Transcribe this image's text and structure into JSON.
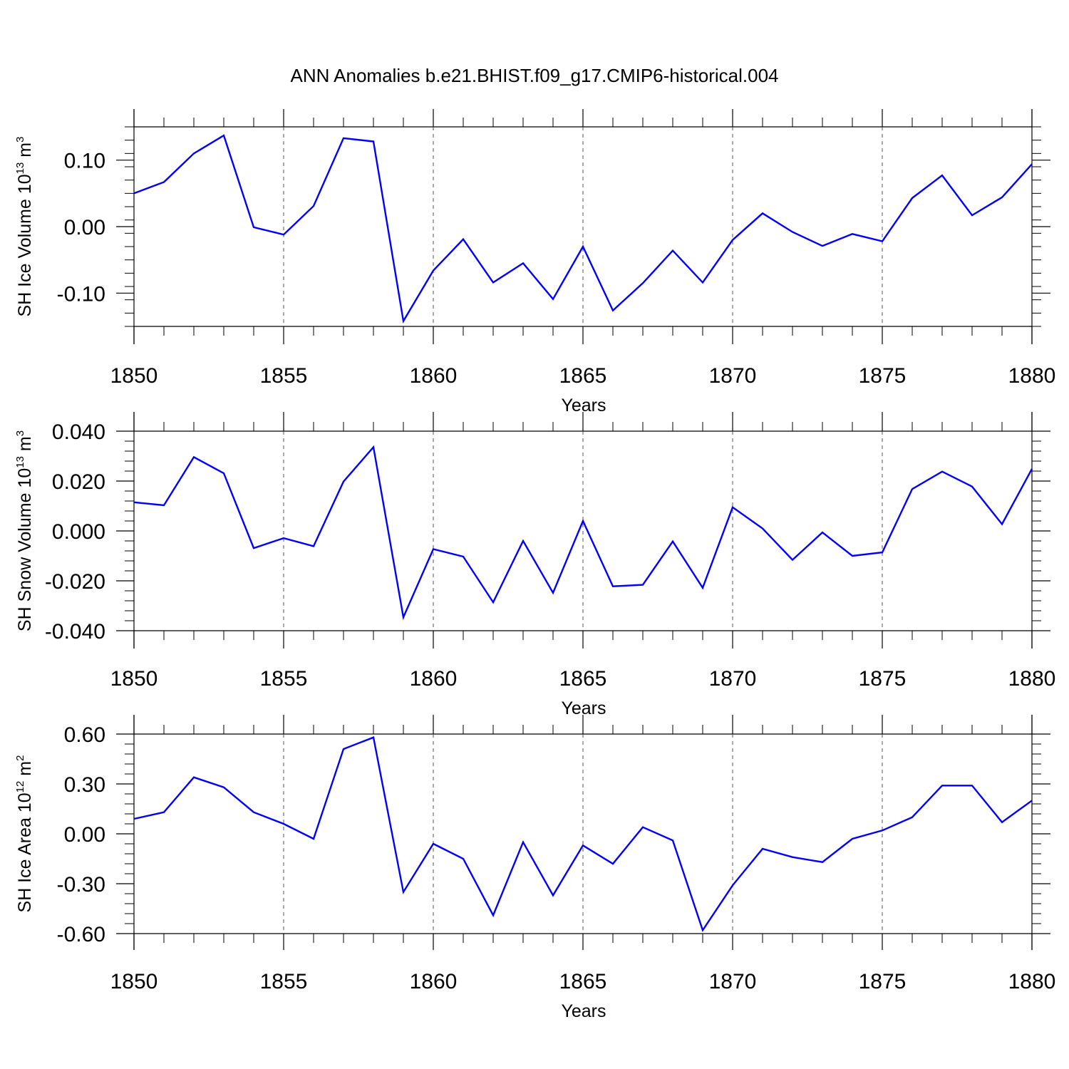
{
  "title": "ANN Anomalies b.e21.BHIST.f09_g17.CMIP6-historical.004",
  "colors": {
    "line": "#0000ff",
    "axis": "#000000",
    "grid": "#555555"
  },
  "chart_data": [
    {
      "type": "line",
      "xlabel": "Years",
      "ylabel": "SH Ice Volume",
      "ylabel_exp": "13",
      "ylabel_unit_exp": "3",
      "xlim": [
        1850,
        1880
      ],
      "ylim": [
        -0.15,
        0.15
      ],
      "xticks": [
        "1850",
        "1855",
        "1860",
        "1865",
        "1870",
        "1875",
        "1880"
      ],
      "yticks": [
        "0.10",
        "0.00",
        "-0.10"
      ],
      "ytick_values": [
        0.1,
        0.0,
        -0.1
      ],
      "grid": "vertical dashed at major x ticks",
      "x": [
        1850,
        1851,
        1852,
        1853,
        1854,
        1855,
        1856,
        1857,
        1858,
        1859,
        1860,
        1861,
        1862,
        1863,
        1864,
        1865,
        1866,
        1867,
        1868,
        1869,
        1870,
        1871,
        1872,
        1873,
        1874,
        1875,
        1876,
        1877,
        1878,
        1879,
        1880
      ],
      "values": [
        0.05,
        0.067,
        0.11,
        0.137,
        -0.001,
        -0.012,
        0.031,
        0.133,
        0.128,
        -0.142,
        -0.066,
        -0.019,
        -0.084,
        -0.055,
        -0.109,
        -0.03,
        -0.126,
        -0.085,
        -0.036,
        -0.084,
        -0.02,
        0.02,
        -0.008,
        -0.029,
        -0.011,
        -0.022,
        0.043,
        0.077,
        0.017,
        0.044,
        0.094
      ]
    },
    {
      "type": "line",
      "xlabel": "Years",
      "ylabel": "SH Snow Volume",
      "ylabel_exp": "13",
      "ylabel_unit_exp": "3",
      "xlim": [
        1850,
        1880
      ],
      "ylim": [
        -0.04,
        0.04
      ],
      "xticks": [
        "1850",
        "1855",
        "1860",
        "1865",
        "1870",
        "1875",
        "1880"
      ],
      "yticks": [
        "0.040",
        "0.020",
        "0.000",
        "-0.020",
        "-0.040"
      ],
      "ytick_values": [
        0.04,
        0.02,
        0.0,
        -0.02,
        -0.04
      ],
      "grid": "vertical dashed at major x ticks",
      "x": [
        1850,
        1851,
        1852,
        1853,
        1854,
        1855,
        1856,
        1857,
        1858,
        1859,
        1860,
        1861,
        1862,
        1863,
        1864,
        1865,
        1866,
        1867,
        1868,
        1869,
        1870,
        1871,
        1872,
        1873,
        1874,
        1875,
        1876,
        1877,
        1878,
        1879,
        1880
      ],
      "values": [
        0.0115,
        0.0103,
        0.0296,
        0.0231,
        -0.0069,
        -0.0029,
        -0.0061,
        0.0198,
        0.0336,
        -0.0346,
        -0.0073,
        -0.0103,
        -0.0286,
        -0.004,
        -0.0248,
        0.004,
        -0.0222,
        -0.0216,
        -0.0042,
        -0.0228,
        0.0095,
        0.001,
        -0.0116,
        -0.0006,
        -0.01,
        -0.0086,
        0.0168,
        0.0238,
        0.0178,
        0.0027,
        0.0249
      ]
    },
    {
      "type": "line",
      "xlabel": "Years",
      "ylabel": "SH Ice Area",
      "ylabel_exp": "12",
      "ylabel_unit_exp": "2",
      "xlim": [
        1850,
        1880
      ],
      "ylim": [
        -0.6,
        0.6
      ],
      "xticks": [
        "1850",
        "1855",
        "1860",
        "1865",
        "1870",
        "1875",
        "1880"
      ],
      "yticks": [
        "0.60",
        "0.30",
        "0.00",
        "-0.30",
        "-0.60"
      ],
      "ytick_values": [
        0.6,
        0.3,
        0.0,
        -0.3,
        -0.6
      ],
      "grid": "vertical dashed at major x ticks",
      "x": [
        1850,
        1851,
        1852,
        1853,
        1854,
        1855,
        1856,
        1857,
        1858,
        1859,
        1860,
        1861,
        1862,
        1863,
        1864,
        1865,
        1866,
        1867,
        1868,
        1869,
        1870,
        1871,
        1872,
        1873,
        1874,
        1875,
        1876,
        1877,
        1878,
        1879,
        1880
      ],
      "values": [
        0.09,
        0.13,
        0.34,
        0.28,
        0.13,
        0.06,
        -0.03,
        0.51,
        0.58,
        -0.35,
        -0.06,
        -0.15,
        -0.49,
        -0.05,
        -0.37,
        -0.07,
        -0.18,
        0.04,
        -0.04,
        -0.58,
        -0.31,
        -0.09,
        -0.14,
        -0.17,
        -0.03,
        0.02,
        0.1,
        0.29,
        0.29,
        0.07,
        0.2
      ]
    }
  ]
}
